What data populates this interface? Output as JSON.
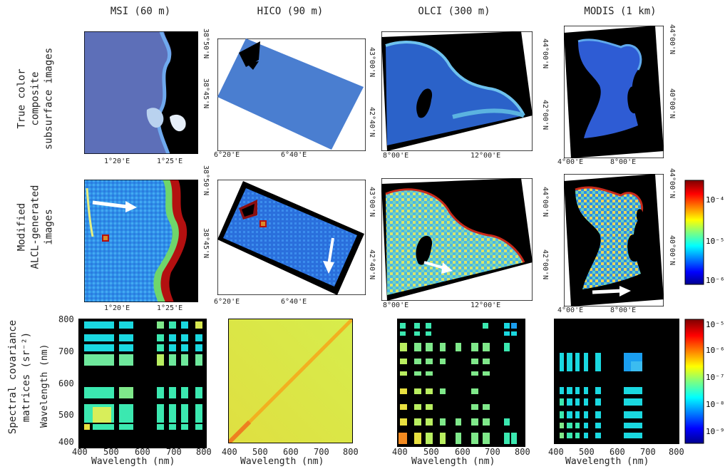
{
  "columns": [
    "MSI (60 m)",
    "HICO (90 m)",
    "OLCI (300 m)",
    "MODIS (1 km)"
  ],
  "row_labels": {
    "row1": [
      "True color",
      "composite",
      "subsurface images"
    ],
    "row2": [
      "Modified",
      "ALCL-generated",
      "images"
    ],
    "row3": [
      "Spectral covariance",
      "matrices (sr⁻²)"
    ]
  },
  "coord_ticks": {
    "msi_x": [
      "1°20'E",
      "1°25'E"
    ],
    "msi_y": [
      "38°50'N",
      "38°45'N"
    ],
    "hico_x": [
      "6°20'E",
      "6°40'E"
    ],
    "hico_y": [
      "43°00'N",
      "42°40'N"
    ],
    "olci_x": [
      "8°00'E",
      "12°00'E"
    ],
    "olci_y": [
      "44°00'N",
      "42°00'N"
    ],
    "modis_x": [
      "4°00'E",
      "8°00'E"
    ],
    "modis_y": [
      "44°00'N",
      "40°00'N"
    ]
  },
  "colorbar_top": {
    "labels": [
      "10⁻⁴",
      "10⁻⁵",
      "10⁻⁶"
    ]
  },
  "colorbar_bottom": {
    "labels": [
      "10⁻⁵",
      "10⁻⁶",
      "10⁻⁷",
      "10⁻⁸",
      "10⁻⁹"
    ]
  },
  "chart_data": [
    {
      "type": "heatmap",
      "title": "MSI",
      "xlabel": "Wavelength (nm)",
      "ylabel": "Wavelength (nm)",
      "xticks": [
        "400",
        "500",
        "600",
        "700",
        "800"
      ],
      "yticks": [
        "800",
        "700",
        "600",
        "500",
        "400"
      ],
      "xlim": [
        400,
        800
      ],
      "ylim": [
        400,
        800
      ],
      "scale": "log"
    },
    {
      "type": "heatmap",
      "title": "HICO",
      "xlabel": "Wavelength (nm)",
      "xticks": [
        "400",
        "500",
        "600",
        "700",
        "800"
      ],
      "xlim": [
        400,
        800
      ],
      "ylim": [
        400,
        800
      ],
      "scale": "log"
    },
    {
      "type": "heatmap",
      "title": "OLCI",
      "xlabel": "Wavelength (nm)",
      "xticks": [
        "400",
        "500",
        "600",
        "700",
        "800"
      ],
      "xlim": [
        400,
        800
      ],
      "ylim": [
        400,
        800
      ],
      "scale": "log"
    },
    {
      "type": "heatmap",
      "title": "MODIS",
      "xlabel": "Wavelength (nm)",
      "xticks": [
        "400",
        "500",
        "600",
        "700",
        "800"
      ],
      "xlim": [
        400,
        800
      ],
      "ylim": [
        400,
        800
      ],
      "scale": "log"
    }
  ]
}
